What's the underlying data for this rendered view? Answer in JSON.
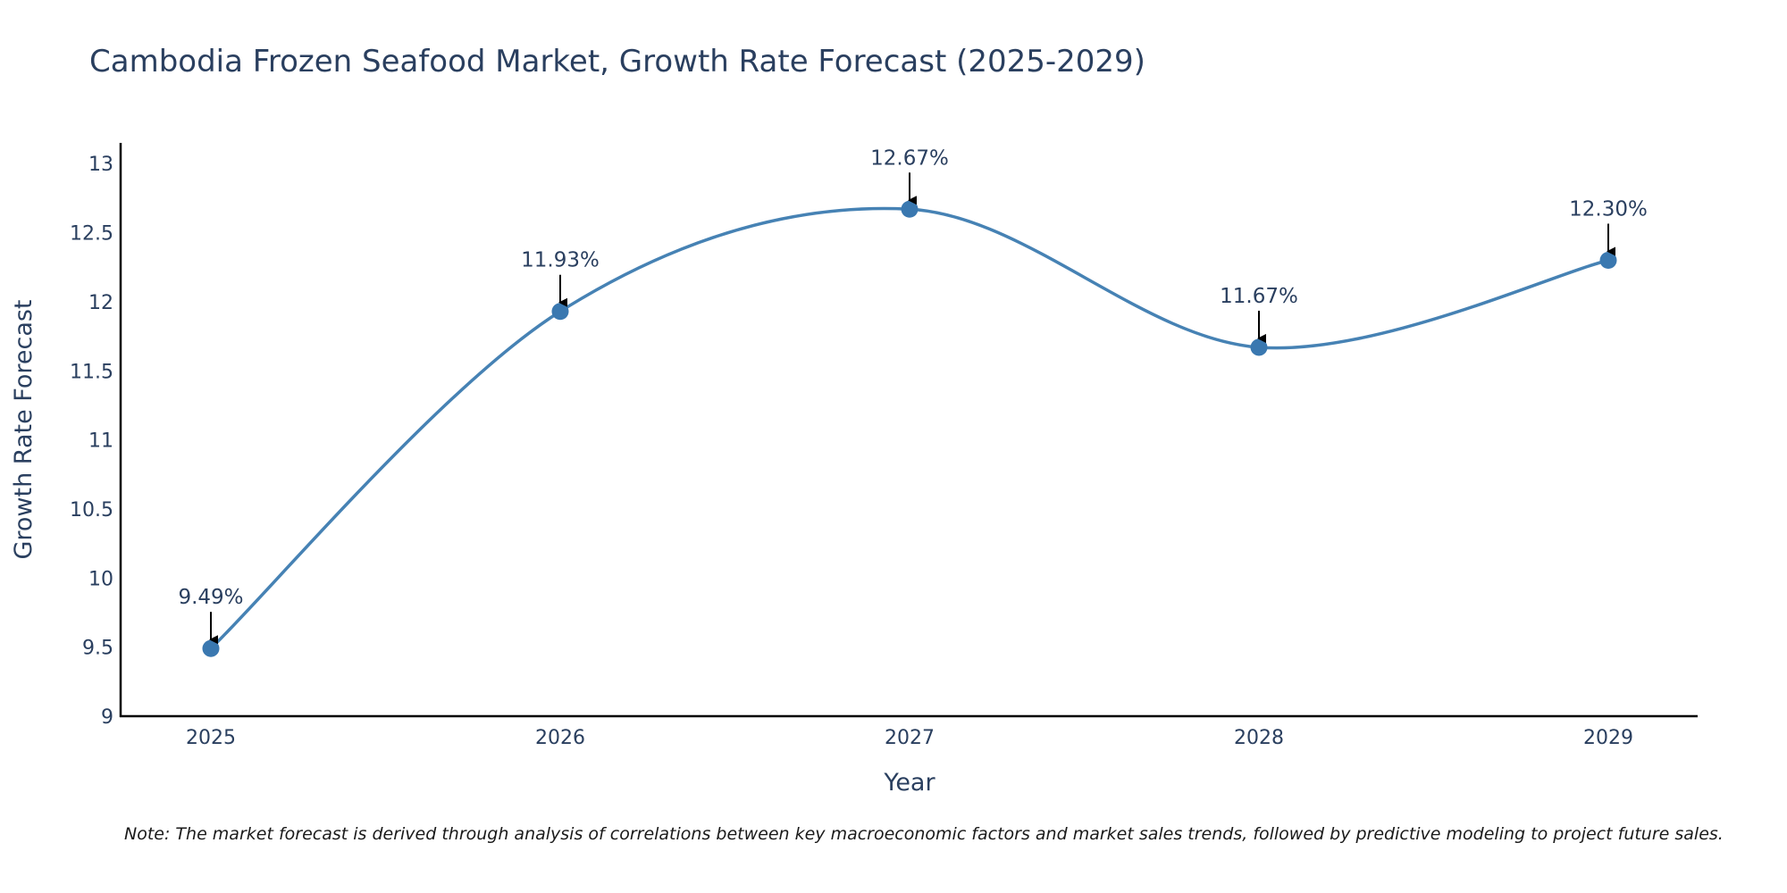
{
  "chart_data": {
    "type": "line",
    "title": "Cambodia Frozen Seafood Market, Growth Rate Forecast (2025-2029)",
    "xlabel": "Year",
    "ylabel": "Growth Rate Forecast",
    "categories": [
      "2025",
      "2026",
      "2027",
      "2028",
      "2029"
    ],
    "values": [
      9.49,
      11.93,
      12.67,
      11.67,
      12.3
    ],
    "data_labels": [
      "9.49%",
      "11.93%",
      "12.67%",
      "11.67%",
      "12.30%"
    ],
    "ylim": [
      9,
      13.15
    ],
    "yticks": [
      9,
      9.5,
      10,
      10.5,
      11,
      11.5,
      12,
      12.5,
      13
    ],
    "ytick_labels": [
      "9",
      "9.5",
      "10",
      "10.5",
      "11",
      "11.5",
      "12",
      "12.5",
      "13"
    ],
    "grid": false,
    "line_color": "#4682b4",
    "marker_color": "#3a78b0",
    "note": "Note: The market forecast is derived through analysis of correlations between key macroeconomic factors and market sales trends, followed by predictive modeling to project future sales."
  }
}
